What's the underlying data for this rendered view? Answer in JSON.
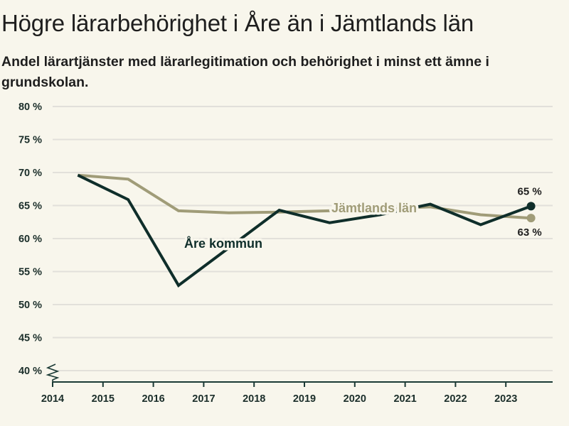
{
  "header": {
    "title": "Högre lärarbehörighet i Åre än i Jämtlands län",
    "subtitle": "Andel lärartjänster med lärarlegitimation och behörighet i minst ett ämne i grundskolan."
  },
  "colors": {
    "background": "#f8f6ec",
    "are": "#0f2e2a",
    "jamtland": "#a09c78",
    "grid": "#e2e0da",
    "axis": "#1b3a35",
    "text": "#1e1e1e"
  },
  "chart_data": {
    "type": "line",
    "title": "Högre lärarbehörighet i Åre än i Jämtlands län",
    "subtitle": "Andel lärartjänster med lärarlegitimation och behörighet i minst ett ämne i grundskolan.",
    "xlabel": "",
    "ylabel": "",
    "xlim": [
      2014,
      2023.93
    ],
    "ylim": [
      40,
      80
    ],
    "y_axis_break": true,
    "grid": true,
    "x_ticks": [
      2014,
      2015,
      2016,
      2017,
      2018,
      2019,
      2020,
      2021,
      2022,
      2023
    ],
    "x_tick_labels": [
      "2014",
      "2015",
      "2016",
      "2017",
      "2018",
      "2019",
      "2020",
      "2021",
      "2022",
      "2023"
    ],
    "y_ticks": [
      40,
      45,
      50,
      55,
      60,
      65,
      70,
      75,
      80
    ],
    "y_tick_labels": [
      "40 %",
      "45 %",
      "50 %",
      "55 %",
      "60 %",
      "65 %",
      "70 %",
      "75 %",
      "80 %"
    ],
    "x": [
      2014.5,
      2015.5,
      2016.5,
      2017.5,
      2018.5,
      2019.5,
      2020.5,
      2021.5,
      2022.5,
      2023.5
    ],
    "series": [
      {
        "name": "Jämtlands län",
        "key": "jamtland",
        "values": [
          69.6,
          69.0,
          64.2,
          63.9,
          64.0,
          64.2,
          64.5,
          64.8,
          63.6,
          63.1
        ],
        "label": "Jämtlands län",
        "end_label": "63 %"
      },
      {
        "name": "Åre kommun",
        "key": "are",
        "values": [
          69.6,
          65.9,
          52.9,
          58.6,
          64.3,
          62.4,
          63.6,
          65.2,
          62.1,
          64.9
        ],
        "label": "Åre kommun",
        "end_label": "65 %"
      }
    ],
    "legend": "inline-labels"
  }
}
